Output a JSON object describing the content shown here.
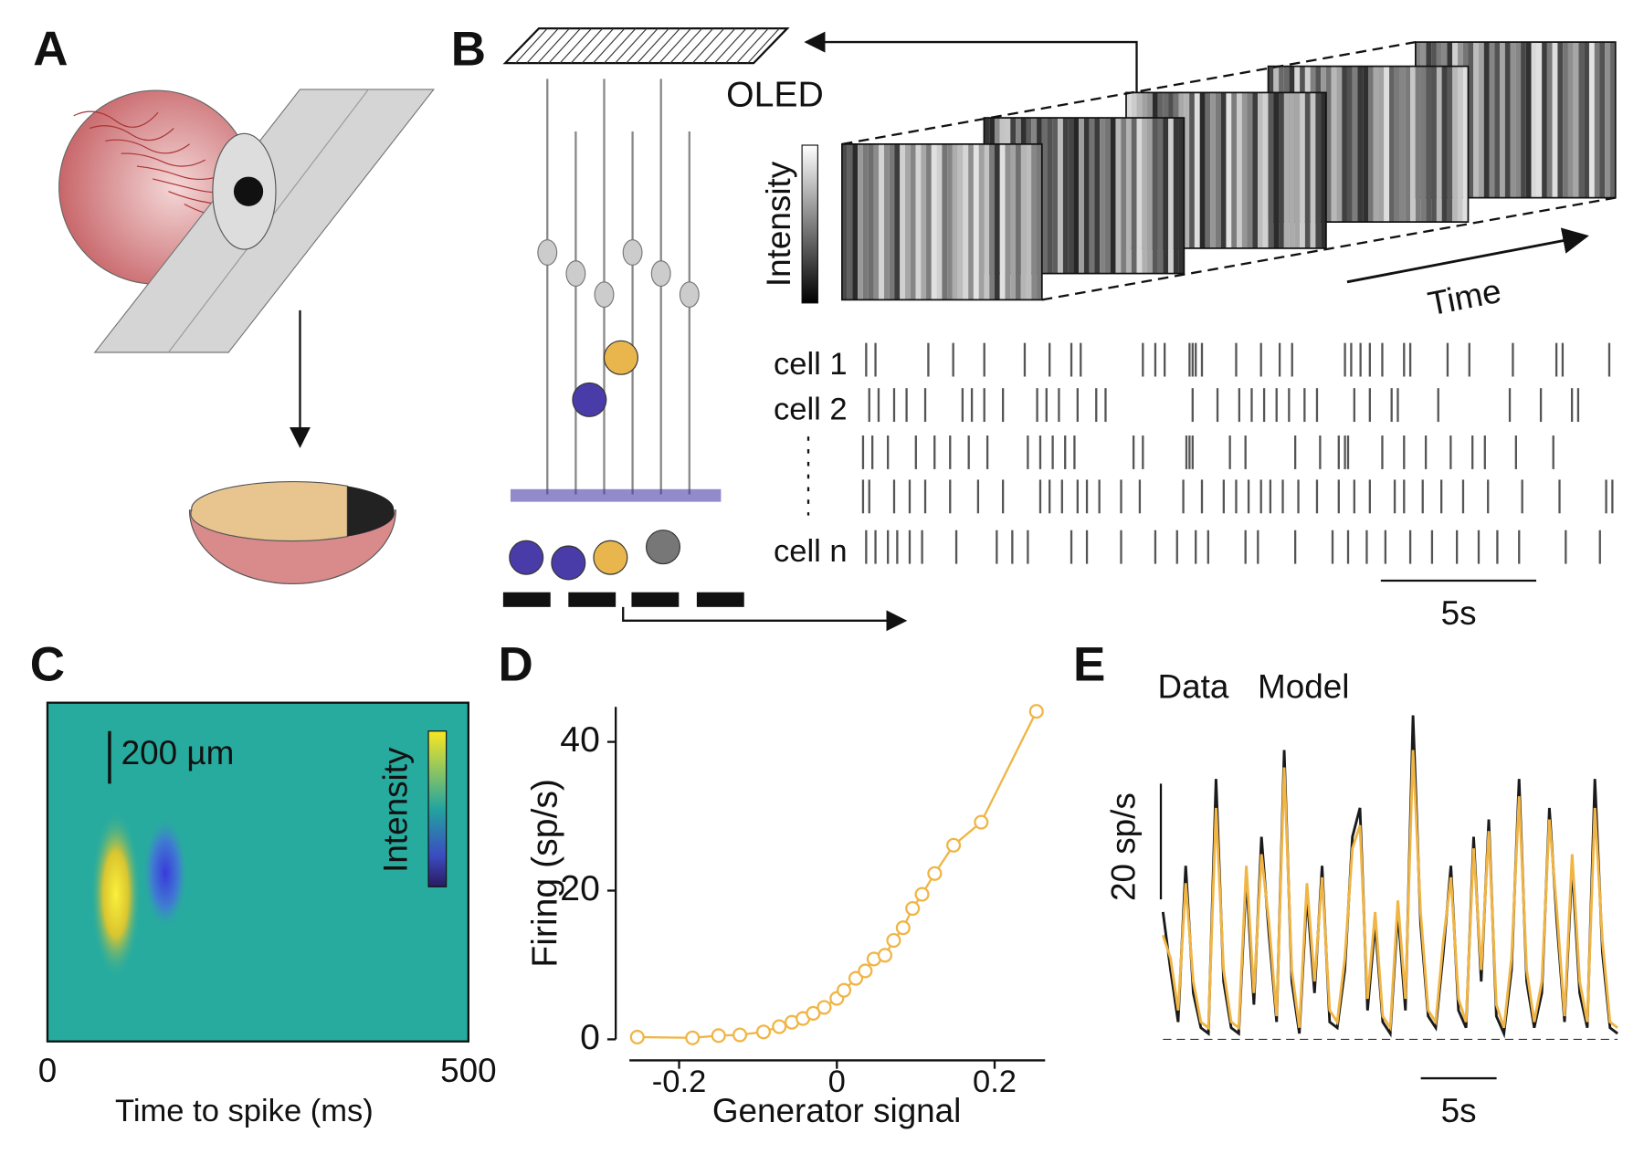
{
  "panel_labels": [
    "A",
    "B",
    "C",
    "D",
    "E"
  ],
  "panel_b": {
    "oled_label": "OLED",
    "intensity_label": "Intensity",
    "time_label": "Time",
    "row_labels": [
      "cell 1",
      "cell 2",
      null,
      null,
      "cell n"
    ],
    "xlim": [
      0,
      24.2
    ],
    "scale_bar": {
      "value": 5,
      "label": "5s"
    },
    "rows": [
      [
        0.1,
        0.4,
        2.1,
        2.9,
        3.9,
        5.2,
        6.0,
        6.7,
        7.0,
        9.0,
        9.4,
        9.7,
        10.5,
        10.6,
        10.7,
        10.9,
        12.0,
        12.8,
        13.4,
        13.8,
        15.5,
        15.7,
        16.0,
        16.3,
        16.7,
        17.4,
        17.6,
        18.8,
        19.5,
        20.9,
        22.3,
        22.5,
        24.0
      ],
      [
        0.2,
        0.5,
        1.0,
        1.4,
        2.0,
        3.2,
        3.5,
        3.9,
        4.5,
        5.6,
        5.9,
        6.3,
        6.9,
        7.5,
        7.8,
        10.6,
        11.4,
        12.1,
        12.5,
        12.9,
        13.3,
        13.7,
        14.2,
        14.6,
        15.8,
        16.3,
        17.0,
        17.2,
        18.5,
        20.8,
        21.8,
        22.8,
        23.0
      ],
      [
        0.0,
        0.3,
        0.8,
        1.7,
        2.3,
        2.8,
        3.4,
        4.0,
        5.3,
        5.7,
        6.1,
        6.5,
        6.8,
        8.7,
        9.0,
        10.4,
        10.5,
        10.6,
        11.8,
        12.3,
        13.9,
        14.7,
        15.3,
        15.5,
        15.6,
        16.7,
        17.4,
        18.1,
        18.9,
        19.6,
        20.0,
        21.0,
        22.2
      ],
      [
        0.0,
        0.2,
        1.0,
        1.5,
        2.0,
        2.8,
        3.7,
        4.5,
        5.7,
        6.0,
        6.4,
        6.9,
        7.2,
        7.6,
        8.3,
        8.9,
        10.3,
        10.9,
        11.6,
        12.0,
        12.4,
        12.8,
        13.1,
        13.5,
        14.0,
        14.6,
        15.3,
        15.8,
        16.3,
        17.1,
        17.4,
        18.0,
        18.6,
        19.3,
        20.1,
        21.2,
        22.4,
        23.9,
        24.1
      ],
      [
        0.1,
        0.4,
        0.8,
        1.1,
        1.5,
        1.9,
        3.0,
        4.3,
        4.8,
        5.3,
        6.7,
        7.2,
        8.3,
        9.4,
        10.1,
        10.7,
        11.1,
        12.3,
        12.7,
        13.9,
        15.1,
        15.6,
        16.2,
        16.8,
        17.6,
        18.3,
        19.1,
        19.8,
        20.4,
        21.1,
        22.6,
        23.7
      ]
    ]
  },
  "chart_data": [
    {
      "type": "heatmap",
      "xlabel": "Time to spike (ms)",
      "xlim": [
        0,
        500
      ],
      "xticks": [
        0,
        500
      ],
      "scale_label": "200 µm",
      "colorbar_label": "Intensity"
    },
    {
      "type": "scatter",
      "xlabel": "Generator signal",
      "ylabel": "Firing (sp/s)",
      "color": "#f0b545",
      "x": [
        -0.253,
        -0.183,
        -0.15,
        -0.123,
        -0.093,
        -0.073,
        -0.057,
        -0.043,
        -0.03,
        -0.016,
        0,
        0.009,
        0.024,
        0.036,
        0.047,
        0.061,
        0.072,
        0.084,
        0.096,
        0.108,
        0.124,
        0.148,
        0.183,
        0.253
      ],
      "values": [
        0.3,
        0.2,
        0.5,
        0.6,
        1,
        1.7,
        2.3,
        2.8,
        3.5,
        4.3,
        5.5,
        6.6,
        8.2,
        9.2,
        10.8,
        11.3,
        13.3,
        15,
        17.6,
        19.5,
        22.3,
        26.1,
        29.2,
        44.1
      ],
      "xlim": [
        -0.263,
        0.264
      ],
      "ylim": [
        0,
        44.7
      ],
      "xticks": [
        -0.2,
        0,
        0.2
      ],
      "yticks": [
        0,
        20,
        40
      ]
    },
    {
      "type": "line",
      "xlim": [
        0,
        30
      ],
      "ylim": [
        0,
        56
      ],
      "x": [
        0,
        0.5,
        1,
        1.5,
        2,
        2.5,
        3,
        3.5,
        4,
        4.5,
        5,
        5.5,
        6,
        6.5,
        7,
        7.5,
        8,
        8.5,
        9,
        9.5,
        10,
        10.5,
        11,
        11.5,
        12,
        12.5,
        13,
        13.5,
        14,
        14.5,
        15,
        15.5,
        16,
        16.5,
        17,
        17.5,
        18,
        18.5,
        19,
        19.5,
        20,
        20.5,
        21,
        21.5,
        22,
        22.5,
        23,
        23.5,
        24,
        24.5,
        25,
        25.5,
        26,
        26.5,
        27,
        27.5,
        28,
        28.5,
        29,
        29.5,
        30
      ],
      "series": [
        {
          "name": "Data",
          "color": "#1a1a1a",
          "values": [
            22,
            12,
            3,
            30,
            8,
            2,
            1,
            45,
            10,
            2,
            1,
            28,
            6,
            35,
            18,
            3,
            50,
            10,
            1,
            25,
            8,
            30,
            3,
            2,
            12,
            35,
            40,
            5,
            20,
            3,
            1,
            22,
            5,
            56,
            20,
            4,
            2,
            15,
            30,
            5,
            2,
            35,
            10,
            38,
            4,
            1,
            12,
            45,
            10,
            2,
            8,
            40,
            20,
            3,
            30,
            8,
            2,
            45,
            15,
            2,
            1
          ]
        },
        {
          "name": "Model",
          "color": "#f0b545",
          "values": [
            18,
            14,
            5,
            27,
            10,
            3,
            2,
            40,
            12,
            3,
            2,
            30,
            8,
            32,
            20,
            4,
            47,
            12,
            2,
            27,
            10,
            28,
            5,
            3,
            14,
            33,
            37,
            7,
            22,
            4,
            2,
            24,
            7,
            50,
            22,
            5,
            3,
            17,
            28,
            7,
            3,
            33,
            12,
            36,
            6,
            2,
            14,
            42,
            12,
            3,
            10,
            38,
            22,
            4,
            32,
            10,
            3,
            40,
            17,
            3,
            2
          ]
        }
      ],
      "y_scale_bar": {
        "value": 20,
        "label": "20 sp/s"
      },
      "x_scale_bar": {
        "value": 5,
        "label": "5s"
      }
    }
  ]
}
